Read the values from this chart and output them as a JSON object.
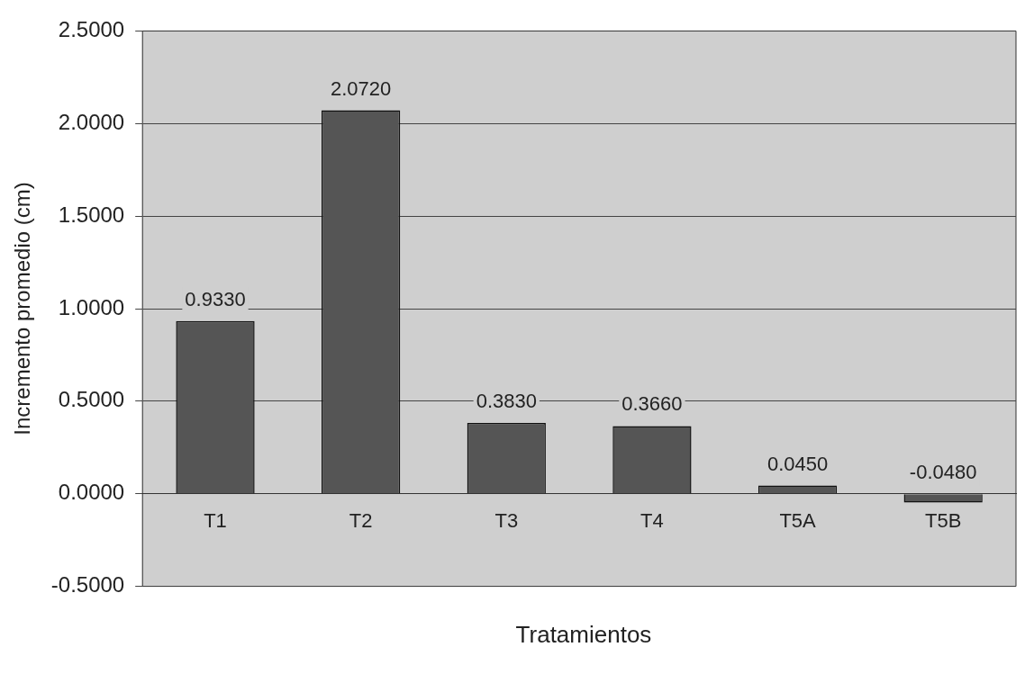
{
  "chart_data": {
    "type": "bar",
    "xlabel": "Tratamientos",
    "ylabel": "Incremento promedio (cm)",
    "categories": [
      "T1",
      "T2",
      "T3",
      "T4",
      "T5A",
      "T5B"
    ],
    "values": [
      0.933,
      2.072,
      0.383,
      0.366,
      0.045,
      -0.048
    ],
    "value_labels": [
      "0.9330",
      "2.0720",
      "0.3830",
      "0.3660",
      "0.0450",
      "-0.0480"
    ],
    "color": "#555555",
    "ylim": [
      -0.5,
      2.5
    ],
    "yticks": [
      {
        "value": -0.5,
        "label": "-0.5000"
      },
      {
        "value": 0,
        "label": "0.0000"
      },
      {
        "value": 0.5,
        "label": "0.5000"
      },
      {
        "value": 1,
        "label": "1.0000"
      },
      {
        "value": 1.5,
        "label": "1.5000"
      },
      {
        "value": 2,
        "label": "2.0000"
      },
      {
        "value": 2.5,
        "label": "2.5000"
      }
    ],
    "grid": "y",
    "legend": false
  }
}
